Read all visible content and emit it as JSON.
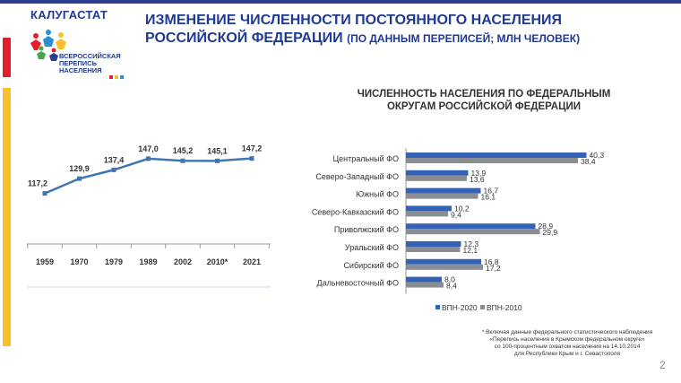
{
  "header": {
    "agency": "КАЛУГАСТАТ",
    "title_line1": "ИЗМЕНЕНИЕ ЧИСЛЕННОСТИ ПОСТОЯННОГО НАСЕЛЕНИЯ",
    "title_line2": "РОССИЙСКОЙ ФЕДЕРАЦИИ",
    "title_sub": "(ПО ДАННЫМ ПЕРЕПИСЕЙ; МЛН ЧЕЛОВЕК)"
  },
  "logo": {
    "line1": "ВСЕРОССИЙСКАЯ",
    "line2": "ПЕРЕПИСЬ",
    "line3": "НАСЕЛЕНИЯ"
  },
  "colors": {
    "accent_blue": "#1f3a93",
    "stripe_red": "#e3202a",
    "stripe_yellow": "#f6c12b",
    "line_blue": "#3f74b5",
    "bar_blue": "#3463b5",
    "bar_gray": "#8a8d91"
  },
  "chart_data": [
    {
      "type": "line",
      "title": "",
      "categories": [
        "1959",
        "1970",
        "1979",
        "1989",
        "2002",
        "2010*",
        "2021"
      ],
      "values": [
        117.2,
        129.9,
        137.4,
        147.0,
        145.2,
        145.1,
        147.2
      ],
      "value_labels": [
        "117,2",
        "129,9",
        "137,4",
        "147,0",
        "145,2",
        "145,1",
        "147,2"
      ],
      "ylim": [
        60,
        160
      ],
      "grid": false
    },
    {
      "type": "bar",
      "orientation": "horizontal",
      "title": "ЧИСЛЕННОСТЬ НАСЕЛЕНИЯ ПО ФЕДЕРАЛЬНЫМ ОКРУГАМ РОССИЙСКОЙ ФЕДЕРАЦИИ",
      "title_line1": "ЧИСЛЕННОСТЬ НАСЕЛЕНИЯ ПО ФЕДЕРАЛЬНЫМ",
      "title_line2": "ОКРУГАМ РОССИЙСКОЙ ФЕДЕРАЦИИ",
      "categories": [
        "Центральный ФО",
        "Северо-Западный ФО",
        "Южный ФО",
        "Северо-Кавказский ФО",
        "Приволжский ФО",
        "Уральский ФО",
        "Сибирский ФО",
        "Дальневосточный ФО"
      ],
      "series": [
        {
          "name": "ВПН-2020",
          "values": [
            40.3,
            13.9,
            16.7,
            10.2,
            28.9,
            12.3,
            16.8,
            8.0
          ],
          "labels": [
            "40,3",
            "13,9",
            "16,7",
            "10,2",
            "28,9",
            "12,3",
            "16,8",
            "8,0"
          ]
        },
        {
          "name": "ВПН-2010",
          "values": [
            38.4,
            13.6,
            16.1,
            9.4,
            29.9,
            12.1,
            17.2,
            8.4
          ],
          "labels": [
            "38,4",
            "13,6",
            "16,1",
            "9,4",
            "29,9",
            "12,1",
            "17,2",
            "8,4"
          ]
        }
      ],
      "xlim": [
        0,
        42
      ],
      "legend": "bottom"
    }
  ],
  "footnote": {
    "line1": "* Включая данные федерального статистического наблюдения",
    "line2": "«Перепись населения в Крымском федеральном округе»",
    "line3": "со 100-процентным охватом населения на 14.10.2014",
    "line4": "для Республики Крым и г. Севастополя"
  },
  "page_number": "2"
}
